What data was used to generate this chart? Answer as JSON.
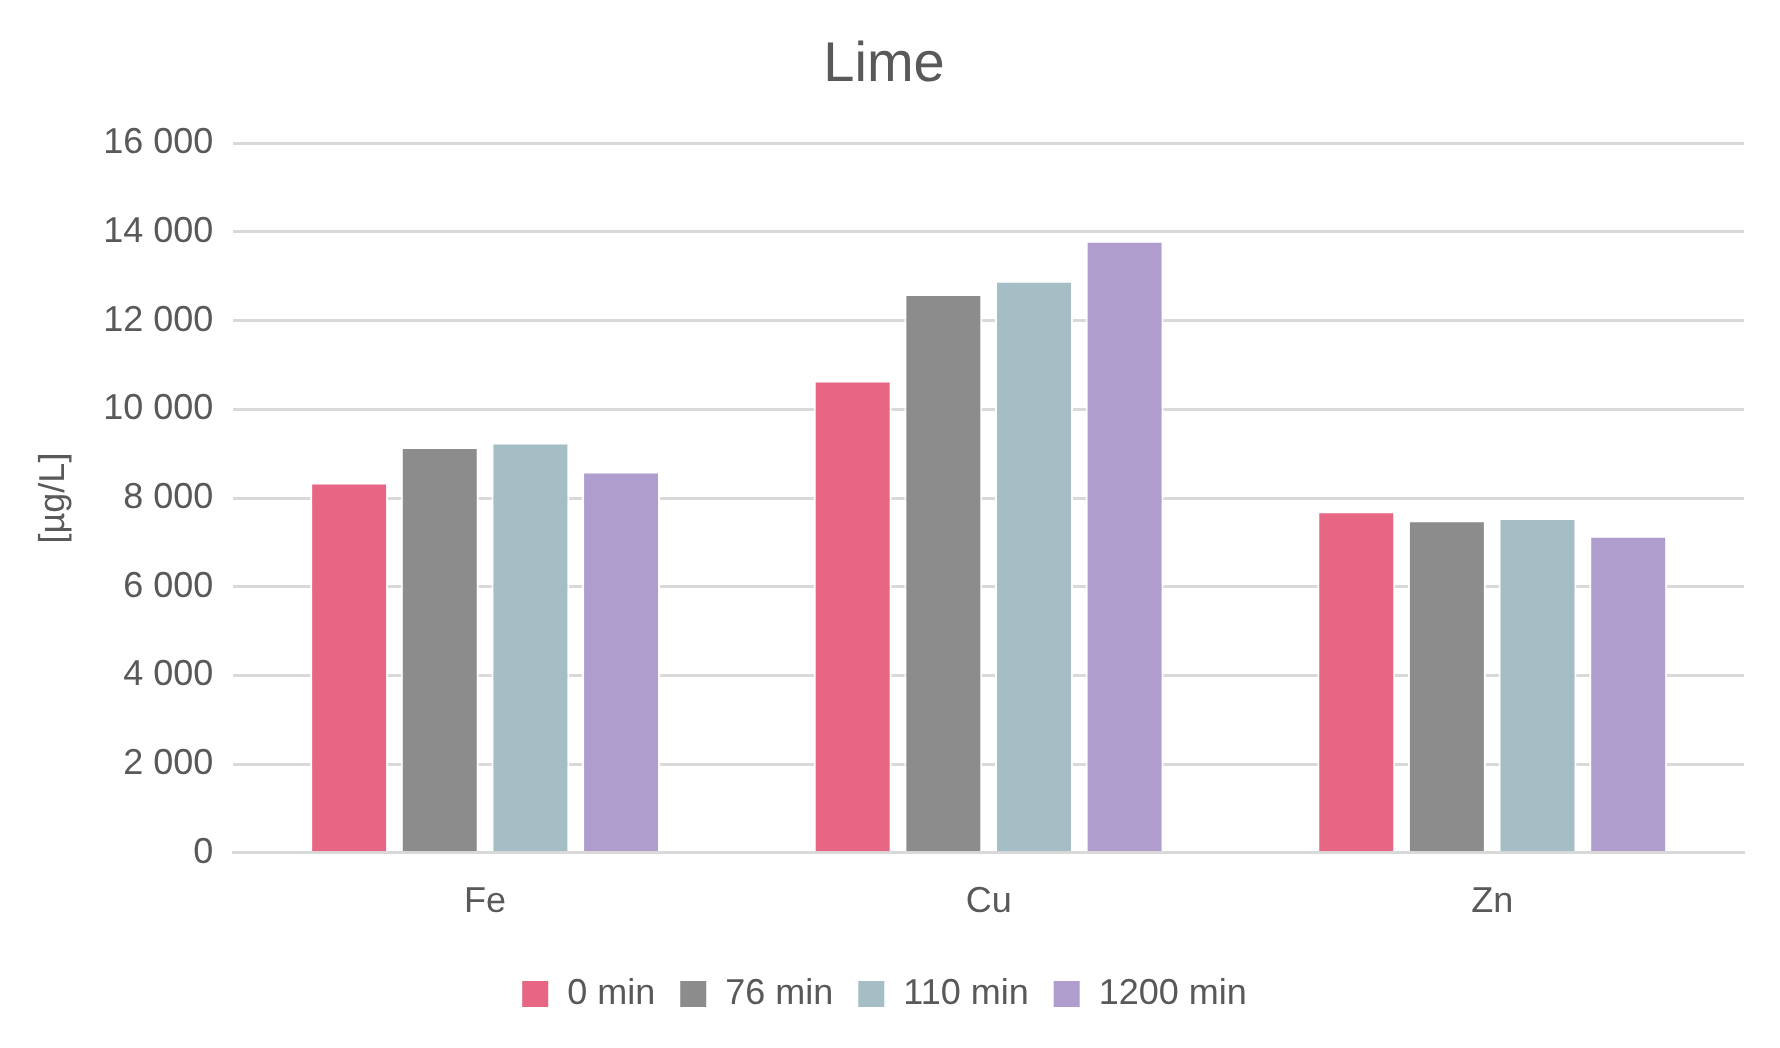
{
  "chart_data": {
    "type": "bar",
    "title": "Lime",
    "ylabel": "[µg/L]",
    "categories": [
      "Fe",
      "Cu",
      "Zn"
    ],
    "series": [
      {
        "name": "0 min",
        "color": "#e66684",
        "values": [
          8350,
          10650,
          7700
        ]
      },
      {
        "name": "76 min",
        "color": "#8c8c8c",
        "values": [
          9150,
          12600,
          7500
        ]
      },
      {
        "name": "110 min",
        "color": "#a5bdc4",
        "values": [
          9250,
          12900,
          7550
        ]
      },
      {
        "name": "1200 min",
        "color": "#af9ecd",
        "values": [
          8600,
          13800,
          7150
        ]
      }
    ],
    "ylim": [
      0,
      16000
    ],
    "yticks": [
      {
        "value": 0,
        "label": "0"
      },
      {
        "value": 2000,
        "label": "2 000"
      },
      {
        "value": 4000,
        "label": "4 000"
      },
      {
        "value": 6000,
        "label": "6 000"
      },
      {
        "value": 8000,
        "label": "8 000"
      },
      {
        "value": 10000,
        "label": "10 000"
      },
      {
        "value": 12000,
        "label": "12 000"
      },
      {
        "value": 14000,
        "label": "14 000"
      },
      {
        "value": 16000,
        "label": "16 000"
      }
    ],
    "grid": "y",
    "legend": "bottom"
  }
}
